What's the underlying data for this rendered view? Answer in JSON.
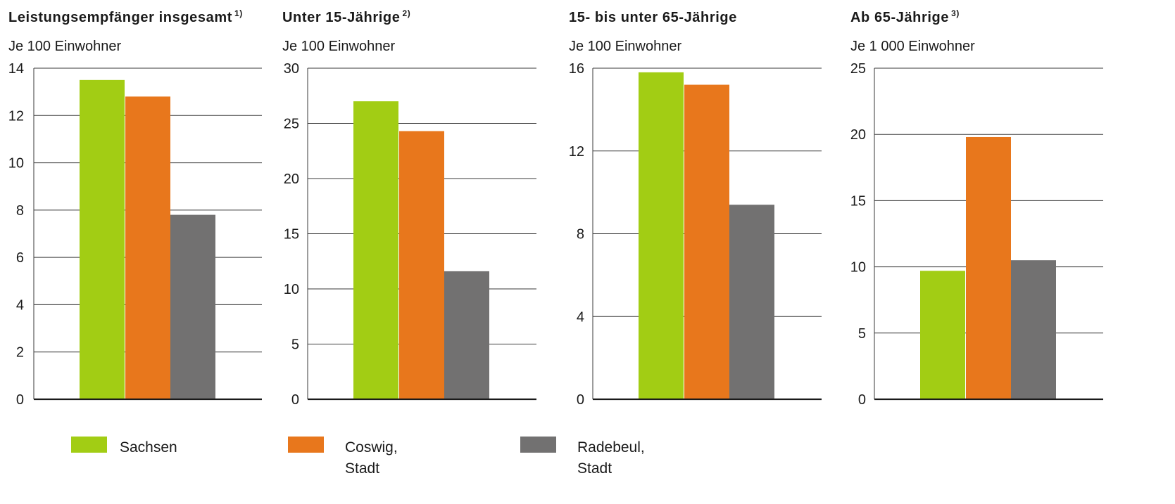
{
  "colors": {
    "sachsen": "#a2cd14",
    "coswig": "#e8771c",
    "radebeul": "#727171",
    "grid": "#3a3a3a"
  },
  "legend": [
    {
      "key": "sachsen",
      "label_lines": [
        "Sachsen"
      ]
    },
    {
      "key": "coswig",
      "label_lines": [
        "Coswig,",
        "Stadt"
      ]
    },
    {
      "key": "radebeul",
      "label_lines": [
        "Radebeul,",
        "Stadt"
      ]
    }
  ],
  "chart_data": [
    {
      "type": "bar",
      "title": "Leistungsempfänger insgesamt",
      "title_sup": "1)",
      "subtitle": "Je 100 Einwohner",
      "ylim": [
        0,
        14
      ],
      "yticks": [
        0,
        2,
        4,
        6,
        8,
        10,
        12,
        14
      ],
      "grid": true,
      "series": [
        {
          "name": "Sachsen",
          "values": [
            13.5
          ]
        },
        {
          "name": "Coswig, Stadt",
          "values": [
            12.8
          ]
        },
        {
          "name": "Radebeul, Stadt",
          "values": [
            7.8
          ]
        }
      ]
    },
    {
      "type": "bar",
      "title": "Unter 15-Jährige",
      "title_sup": "2)",
      "subtitle": "Je 100 Einwohner",
      "ylim": [
        0,
        30
      ],
      "yticks": [
        0,
        5,
        10,
        15,
        20,
        25,
        30
      ],
      "grid": true,
      "series": [
        {
          "name": "Sachsen",
          "values": [
            27.0
          ]
        },
        {
          "name": "Coswig, Stadt",
          "values": [
            24.3
          ]
        },
        {
          "name": "Radebeul, Stadt",
          "values": [
            11.6
          ]
        }
      ]
    },
    {
      "type": "bar",
      "title": "15- bis unter 65-Jährige",
      "title_sup": "",
      "subtitle": "Je 100 Einwohner",
      "ylim": [
        0,
        16
      ],
      "yticks": [
        0,
        4,
        8,
        12,
        16
      ],
      "grid": true,
      "series": [
        {
          "name": "Sachsen",
          "values": [
            15.8
          ]
        },
        {
          "name": "Coswig, Stadt",
          "values": [
            15.2
          ]
        },
        {
          "name": "Radebeul, Stadt",
          "values": [
            9.4
          ]
        }
      ]
    },
    {
      "type": "bar",
      "title": "Ab 65-Jährige",
      "title_sup": "3)",
      "subtitle": "Je 1 000 Einwohner",
      "ylim": [
        0,
        25
      ],
      "yticks": [
        0,
        5,
        10,
        15,
        20,
        25
      ],
      "grid": true,
      "series": [
        {
          "name": "Sachsen",
          "values": [
            9.7
          ]
        },
        {
          "name": "Coswig, Stadt",
          "values": [
            19.8
          ]
        },
        {
          "name": "Radebeul, Stadt",
          "values": [
            10.5
          ]
        }
      ]
    }
  ]
}
